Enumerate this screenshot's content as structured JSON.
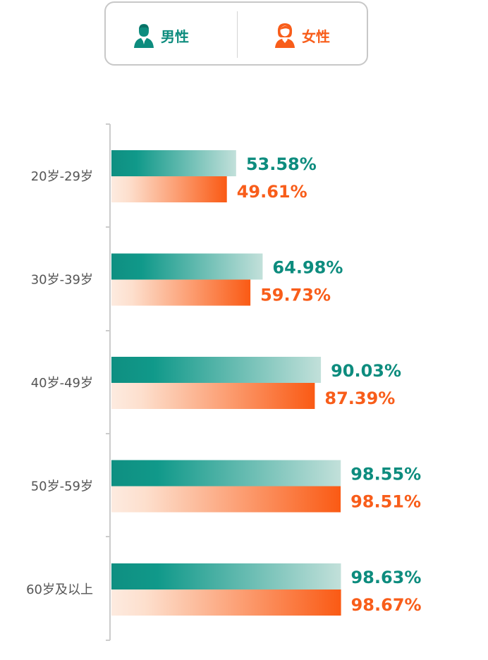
{
  "legend": {
    "male": {
      "label": "男性",
      "icon": "male-user-icon",
      "color": "#0d8c7e"
    },
    "female": {
      "label": "女性",
      "icon": "female-user-icon",
      "color": "#f85d1a"
    }
  },
  "chart_data": {
    "type": "bar",
    "orientation": "horizontal",
    "categories": [
      "20岁-29岁",
      "30岁-39岁",
      "40岁-49岁",
      "50岁-59岁",
      "60岁及以上"
    ],
    "series": [
      {
        "name": "男性",
        "values": [
          53.58,
          64.98,
          90.03,
          98.55,
          98.63
        ],
        "labels": [
          "53.58%",
          "64.98%",
          "90.03%",
          "98.55%",
          "98.63%"
        ],
        "color": "#0d8c7e"
      },
      {
        "name": "女性",
        "values": [
          49.61,
          59.73,
          87.39,
          98.51,
          98.67
        ],
        "labels": [
          "49.61%",
          "59.73%",
          "87.39%",
          "98.51%",
          "98.67%"
        ],
        "color": "#f85d1a"
      }
    ],
    "xlim": [
      0,
      100
    ],
    "legend_position": "top",
    "grid": false
  }
}
